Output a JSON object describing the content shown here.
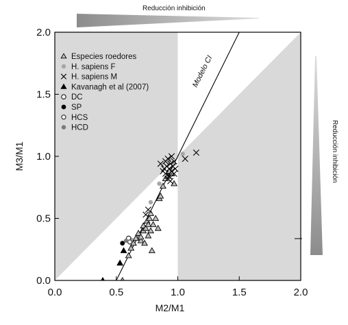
{
  "chart_data": {
    "type": "scatter",
    "xlabel": "M2/M1",
    "ylabel": "M3/M1",
    "xlim": [
      0,
      2
    ],
    "ylim": [
      0,
      2
    ],
    "xticks": [
      "0.0",
      "0.5",
      "1.0",
      "1.5",
      "2.0"
    ],
    "yticks": [
      "0.0",
      "0.5",
      "1.0",
      "1.5",
      "2.0"
    ],
    "grid": false,
    "legend_position": "top-left",
    "shaded_regions_color": "#d9d9d9",
    "model_line": {
      "label": "Modelo CI",
      "x1": 0.5,
      "y1": 0.0,
      "x2": 1.5,
      "y2": 2.0
    },
    "top_annotation": "Reducción inhibición",
    "right_annotation": "Reducción inhibición",
    "series": [
      {
        "name": "Especies roedores",
        "marker": "triangle-open",
        "points": [
          [
            0.55,
            0.0
          ],
          [
            0.6,
            0.2
          ],
          [
            0.62,
            0.26
          ],
          [
            0.64,
            0.3
          ],
          [
            0.66,
            0.34
          ],
          [
            0.68,
            0.38
          ],
          [
            0.7,
            0.32
          ],
          [
            0.72,
            0.4
          ],
          [
            0.72,
            0.44
          ],
          [
            0.74,
            0.42
          ],
          [
            0.75,
            0.48
          ],
          [
            0.76,
            0.36
          ],
          [
            0.77,
            0.5
          ],
          [
            0.78,
            0.4
          ],
          [
            0.78,
            0.54
          ],
          [
            0.79,
            0.24
          ],
          [
            0.8,
            0.45
          ],
          [
            0.82,
            0.5
          ],
          [
            0.84,
            0.42
          ],
          [
            0.85,
            0.66
          ],
          [
            0.86,
            0.68
          ],
          [
            0.88,
            0.76
          ],
          [
            0.9,
            0.82
          ],
          [
            0.92,
            0.84
          ],
          [
            0.93,
            0.88
          ],
          [
            0.95,
            0.86
          ],
          [
            0.97,
            0.78
          ],
          [
            0.7,
            0.35
          ],
          [
            0.73,
            0.3
          ],
          [
            0.76,
            0.45
          ]
        ]
      },
      {
        "name": "H. sapiens F",
        "marker": "circle-gray",
        "points": [
          [
            0.62,
            0.33
          ],
          [
            0.78,
            0.63
          ],
          [
            0.85,
            0.78
          ],
          [
            0.97,
            0.94
          ],
          [
            1.04,
            1.02
          ],
          [
            0.93,
            0.97
          ]
        ]
      },
      {
        "name": "H. sapiens M",
        "marker": "cross",
        "points": [
          [
            0.86,
            0.94
          ],
          [
            0.88,
            0.88
          ],
          [
            0.89,
            0.9
          ],
          [
            0.9,
            0.86
          ],
          [
            0.91,
            0.92
          ],
          [
            0.92,
            0.98
          ],
          [
            0.93,
            0.84
          ],
          [
            0.93,
            0.9
          ],
          [
            0.94,
            0.94
          ],
          [
            0.95,
            0.88
          ],
          [
            0.95,
            1.0
          ],
          [
            0.96,
            0.92
          ],
          [
            0.97,
            0.86
          ],
          [
            0.97,
            0.96
          ],
          [
            0.98,
            0.9
          ],
          [
            0.9,
            0.96
          ],
          [
            0.92,
            0.82
          ],
          [
            0.94,
            0.8
          ],
          [
            1.06,
            0.98
          ],
          [
            1.15,
            1.03
          ],
          [
            0.74,
            0.53
          ],
          [
            0.76,
            0.57
          ]
        ]
      },
      {
        "name": "Kavanagh et al (2007)",
        "marker": "triangle-filled",
        "points": [
          [
            0.39,
            0.0
          ],
          [
            0.53,
            0.14
          ],
          [
            0.56,
            0.24
          ]
        ]
      },
      {
        "name": "DC",
        "marker": "circle-open",
        "points": [
          [
            0.6,
            0.34
          ]
        ]
      },
      {
        "name": "SP",
        "marker": "circle-filled",
        "points": [
          [
            0.55,
            0.3
          ]
        ]
      },
      {
        "name": "HCS",
        "marker": "circle-open-gray",
        "points": [
          [
            0.61,
            0.31
          ]
        ]
      },
      {
        "name": "HCD",
        "marker": "circle-darkgray",
        "points": [
          [
            0.58,
            0.32
          ]
        ]
      }
    ]
  },
  "colors": {
    "shade": "#d9d9d9",
    "gray_marker": "#a6a6a6",
    "dark_gray_marker": "#7a7a7a",
    "triangle_fill": "#bfbfbf",
    "wedge": "#a0a0a0"
  }
}
